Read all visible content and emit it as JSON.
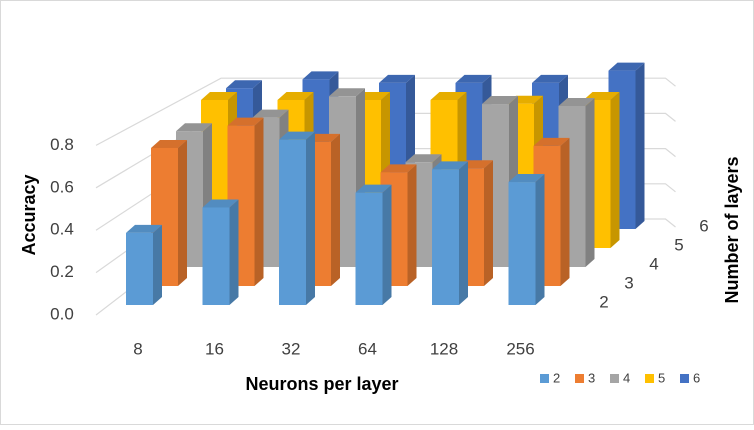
{
  "chart_data": {
    "type": "bar3d",
    "x_label": "Neurons per layer",
    "y_label": "Accuracy",
    "z_label": "Number of layers",
    "categories": [
      "8",
      "16",
      "32",
      "64",
      "128",
      "256"
    ],
    "series": [
      {
        "name": "2",
        "color": "#5b9bd5",
        "values": [
          0.34,
          0.46,
          0.78,
          0.53,
          0.64,
          0.58
        ]
      },
      {
        "name": "3",
        "color": "#ed7d31",
        "values": [
          0.68,
          0.79,
          0.71,
          0.56,
          0.58,
          0.69
        ]
      },
      {
        "name": "4",
        "color": "#a5a5a5",
        "values": [
          0.7,
          0.77,
          0.88,
          0.54,
          0.84,
          0.83
        ]
      },
      {
        "name": "5",
        "color": "#ffc000",
        "values": [
          0.8,
          0.8,
          0.8,
          0.8,
          0.78,
          0.8
        ]
      },
      {
        "name": "6",
        "color": "#4472c4",
        "values": [
          0.8,
          0.85,
          0.83,
          0.83,
          0.83,
          0.9
        ]
      }
    ],
    "ylim": [
      0,
      1
    ],
    "yticks": [
      {
        "value": 0,
        "label": "0.0"
      },
      0.2,
      0.4,
      0.6,
      0.8
    ],
    "grid": true,
    "legend": "bottom-right"
  }
}
